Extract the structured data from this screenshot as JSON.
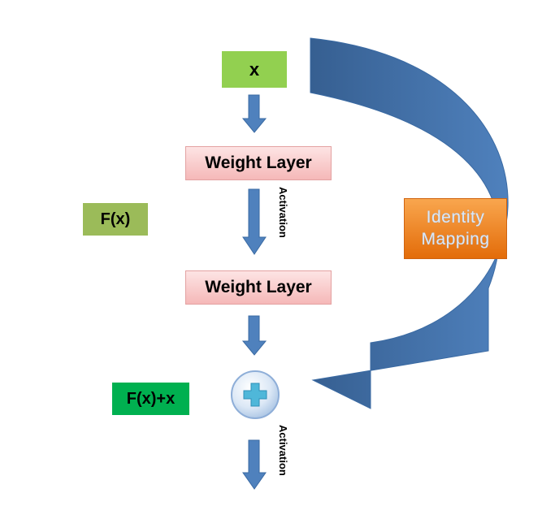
{
  "nodes": {
    "input": "x",
    "weight_layer_1": "Weight Layer",
    "weight_layer_2": "Weight Layer",
    "residual_function": "F(x)",
    "output_sum": "F(x)+x",
    "identity_line1": "Identity",
    "identity_line2": "Mapping"
  },
  "edges": {
    "activation_1": "Activation",
    "activation_2": "Activation"
  },
  "colors": {
    "arrow_blue": "#4f81bd",
    "input_green": "#92d050",
    "fx_green": "#9bbb59",
    "sum_green": "#00b050",
    "weight_pink": "#f5b8b8",
    "identity_orange": "#e36c09"
  },
  "icons": {
    "add_node": "plus-circle-icon"
  }
}
